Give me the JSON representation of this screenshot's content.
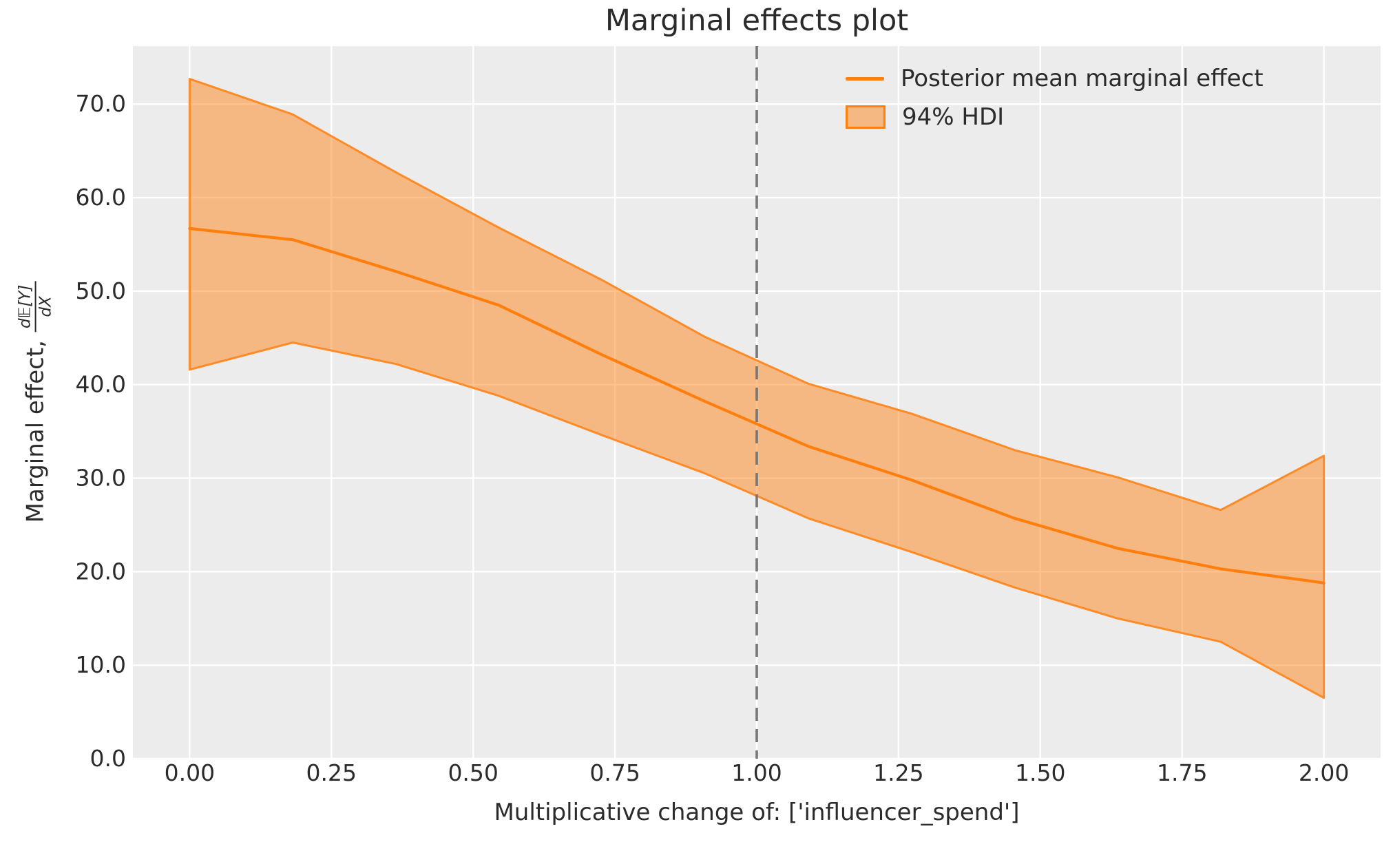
{
  "figure": {
    "title": "Marginal effects plot",
    "xlabel": "Multiplicative change of: ['influencer_spend']",
    "ylabel_prefix": "Marginal effect,",
    "ylabel_frac_numerator": "d𝔼[Y]",
    "ylabel_frac_denominator": "dX"
  },
  "legend": {
    "items": [
      {
        "swatch": "line",
        "label": "Posterior mean marginal effect"
      },
      {
        "swatch": "patch",
        "label": "94% HDI"
      }
    ]
  },
  "colors": {
    "line": "#FF7F0E",
    "band_fill": "rgba(255,127,14,0.48)",
    "band_edge": "rgba(255,127,14,0.85)",
    "reference": "#777777",
    "grid": "#FFFFFF",
    "plot_bg": "#ECECEC",
    "text": "#2B2B2B"
  },
  "chart_data": {
    "type": "line",
    "title": "Marginal effects plot",
    "xlabel": "Multiplicative change of: ['influencer_spend']",
    "ylabel": "Marginal effect, d𝔼[Y]/dX",
    "x": [
      0.0,
      0.182,
      0.364,
      0.545,
      0.727,
      0.909,
      1.091,
      1.273,
      1.455,
      1.636,
      1.818,
      2.0
    ],
    "series": [
      {
        "name": "Posterior mean marginal effect",
        "values": [
          56.7,
          55.5,
          52.1,
          48.5,
          43.2,
          38.2,
          33.4,
          29.8,
          25.7,
          22.5,
          20.3,
          18.8
        ]
      }
    ],
    "hdi": {
      "label": "94% HDI",
      "lower": [
        41.6,
        44.5,
        42.2,
        38.8,
        34.6,
        30.5,
        25.7,
        22.1,
        18.3,
        15.0,
        12.5,
        6.5
      ],
      "upper": [
        72.7,
        68.9,
        62.7,
        56.8,
        51.2,
        45.1,
        40.1,
        36.9,
        33.0,
        30.1,
        26.6,
        32.4
      ]
    },
    "reference_line_x": 1.0,
    "x_ticks": {
      "values": [
        0.0,
        0.25,
        0.5,
        0.75,
        1.0,
        1.25,
        1.5,
        1.75,
        2.0
      ],
      "labels": [
        "0.00",
        "0.25",
        "0.50",
        "0.75",
        "1.00",
        "1.25",
        "1.50",
        "1.75",
        "2.00"
      ]
    },
    "y_ticks": {
      "values": [
        0,
        10,
        20,
        30,
        40,
        50,
        60,
        70
      ],
      "labels": [
        "0.0",
        "10.0",
        "20.0",
        "30.0",
        "40.0",
        "50.0",
        "60.0",
        "70.0"
      ]
    },
    "xlim": [
      -0.1,
      2.1
    ],
    "ylim": [
      0,
      76.2
    ],
    "grid": true,
    "legend_position": "upper right"
  }
}
